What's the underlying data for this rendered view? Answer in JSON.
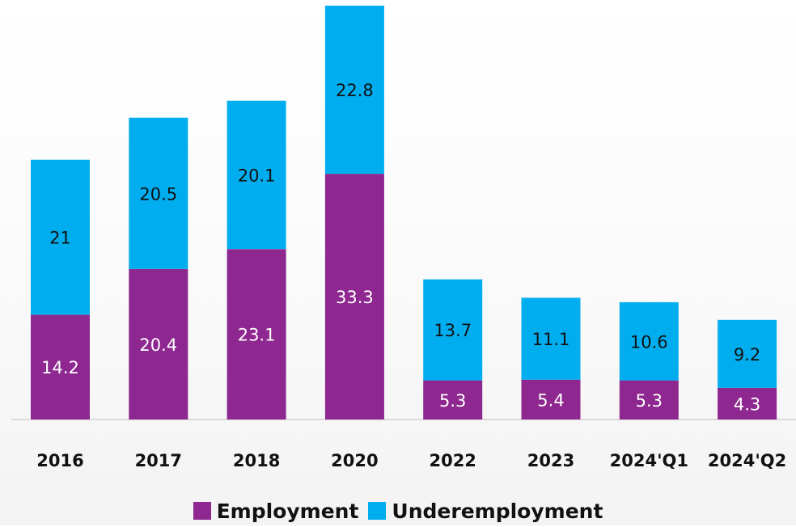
{
  "chart_data": {
    "type": "bar",
    "stacked": true,
    "categories": [
      "2016",
      "2017",
      "2018",
      "2020",
      "2022",
      "2023",
      "2024'Q1",
      "2024'Q2"
    ],
    "series": [
      {
        "name": "Employment",
        "color": "#8E278F",
        "values": [
          14.2,
          20.4,
          23.1,
          33.3,
          5.3,
          5.4,
          5.3,
          4.3
        ]
      },
      {
        "name": "Underemployment",
        "color": "#00AEEF",
        "values": [
          21,
          20.5,
          20.1,
          22.8,
          13.7,
          11.1,
          10.6,
          9.2
        ]
      }
    ],
    "data_labels": [
      [
        "14.2",
        "20.4",
        "23.1",
        "33.3",
        "5.3",
        "5.4",
        "5.3",
        "4.3"
      ],
      [
        "21",
        "20.5",
        "20.1",
        "22.8",
        "13.7",
        "11.1",
        "10.6",
        "9.2"
      ]
    ],
    "legend_position": "bottom",
    "grid": false,
    "ylim": [
      0,
      56.1
    ]
  }
}
